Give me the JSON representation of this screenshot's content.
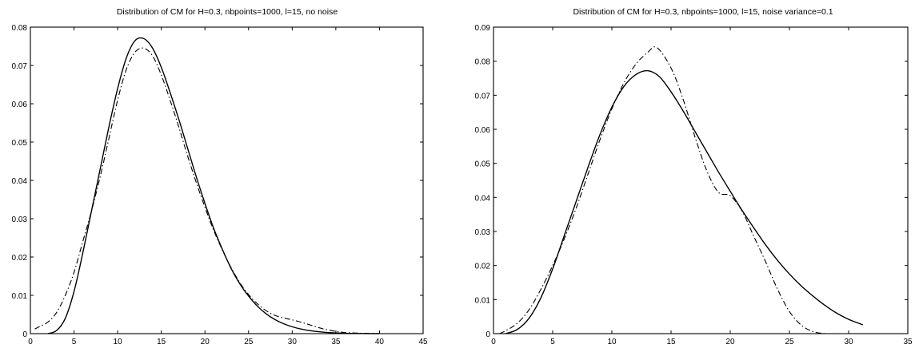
{
  "chart_data": [
    {
      "type": "line",
      "title": "Distribution of CM for H=0.3, nbpoints=1000, l=15, no noise",
      "xlabel": "",
      "ylabel": "",
      "xlim": [
        0,
        45
      ],
      "ylim": [
        0,
        0.08
      ],
      "xticks": [
        0,
        5,
        10,
        15,
        20,
        25,
        30,
        35,
        40,
        45
      ],
      "yticks": [
        0,
        0.01,
        0.02,
        0.03,
        0.04,
        0.05,
        0.06,
        0.07,
        0.08
      ],
      "xtick_labels": [
        "0",
        "5",
        "10",
        "15",
        "20",
        "25",
        "30",
        "35",
        "40",
        "45"
      ],
      "ytick_labels": [
        "0",
        "0.01",
        "0.02",
        "0.03",
        "0.04",
        "0.05",
        "0.06",
        "0.07",
        "0.08"
      ],
      "grid": false,
      "series": [
        {
          "style": "solid",
          "x": [
            2,
            3,
            4,
            5,
            6,
            7,
            8,
            9,
            10,
            11,
            12,
            13,
            14,
            15,
            16,
            17,
            18,
            19,
            20,
            21,
            22,
            23,
            24,
            25,
            26,
            27,
            28,
            29,
            30,
            31,
            32,
            33,
            34,
            35,
            36,
            38,
            40
          ],
          "y": [
            0,
            0.0008,
            0.004,
            0.011,
            0.021,
            0.032,
            0.043,
            0.054,
            0.064,
            0.072,
            0.0765,
            0.077,
            0.0745,
            0.0695,
            0.063,
            0.056,
            0.0485,
            0.041,
            0.034,
            0.0275,
            0.022,
            0.017,
            0.013,
            0.0098,
            0.0072,
            0.0052,
            0.0037,
            0.0026,
            0.0018,
            0.0012,
            0.0008,
            0.0005,
            0.0003,
            0.0002,
            0.0001,
            3e-05,
            0
          ]
        },
        {
          "style": "dashdot",
          "x": [
            0.5,
            1,
            2,
            3,
            4,
            5,
            6,
            7,
            8,
            9,
            10,
            11,
            12,
            13,
            14,
            15,
            16,
            17,
            18,
            19,
            20,
            21,
            22,
            23,
            24,
            25,
            26,
            27,
            28,
            29,
            30,
            31,
            32,
            33,
            34,
            35,
            36,
            38,
            40
          ],
          "y": [
            0.0012,
            0.0018,
            0.003,
            0.0055,
            0.01,
            0.016,
            0.024,
            0.032,
            0.041,
            0.051,
            0.061,
            0.069,
            0.0735,
            0.0745,
            0.0725,
            0.0675,
            0.061,
            0.054,
            0.0465,
            0.0395,
            0.033,
            0.027,
            0.0218,
            0.0172,
            0.0133,
            0.0102,
            0.0078,
            0.006,
            0.0048,
            0.0041,
            0.0036,
            0.003,
            0.0023,
            0.0016,
            0.001,
            0.0006,
            0.0003,
            0.0001,
            0
          ]
        }
      ]
    },
    {
      "type": "line",
      "title": "Distribution of CM for H=0.3, nbpoints=1000, l=15, noise variance=0.1",
      "xlabel": "",
      "ylabel": "",
      "xlim": [
        0,
        35
      ],
      "ylim": [
        0,
        0.09
      ],
      "xticks": [
        0,
        5,
        10,
        15,
        20,
        25,
        30,
        35
      ],
      "yticks": [
        0,
        0.01,
        0.02,
        0.03,
        0.04,
        0.05,
        0.06,
        0.07,
        0.08,
        0.09
      ],
      "xtick_labels": [
        "0",
        "5",
        "10",
        "15",
        "20",
        "25",
        "30",
        "35"
      ],
      "ytick_labels": [
        "0",
        "0.01",
        "0.02",
        "0.03",
        "0.04",
        "0.05",
        "0.06",
        "0.07",
        "0.08",
        "0.09"
      ],
      "grid": false,
      "series": [
        {
          "style": "solid",
          "x": [
            1,
            2,
            3,
            4,
            5,
            6,
            7,
            8,
            9,
            10,
            11,
            12,
            13,
            14,
            15,
            16,
            17,
            18,
            19,
            20,
            21,
            22,
            23,
            24,
            25,
            26,
            27,
            28,
            29,
            30,
            31.2
          ],
          "y": [
            0,
            0.0012,
            0.0045,
            0.0105,
            0.019,
            0.029,
            0.039,
            0.049,
            0.0585,
            0.0665,
            0.0725,
            0.076,
            0.0772,
            0.0755,
            0.071,
            0.0655,
            0.0595,
            0.0535,
            0.0475,
            0.0418,
            0.0362,
            0.031,
            0.026,
            0.0215,
            0.0175,
            0.014,
            0.011,
            0.0083,
            0.006,
            0.0042,
            0.0026
          ]
        },
        {
          "style": "dashdot",
          "x": [
            0.5,
            1,
            2,
            3,
            4,
            5,
            6,
            7,
            8,
            9,
            10,
            11,
            12,
            13,
            13.8,
            15,
            16,
            17,
            18,
            19,
            20,
            21,
            22,
            23,
            24,
            25,
            26,
            27,
            28
          ],
          "y": [
            0,
            0.0008,
            0.003,
            0.007,
            0.013,
            0.02,
            0.028,
            0.037,
            0.047,
            0.057,
            0.066,
            0.0735,
            0.079,
            0.0825,
            0.084,
            0.078,
            0.069,
            0.058,
            0.048,
            0.0415,
            0.0405,
            0.036,
            0.0285,
            0.021,
            0.013,
            0.0065,
            0.0025,
            0.0006,
            0
          ]
        }
      ]
    }
  ]
}
